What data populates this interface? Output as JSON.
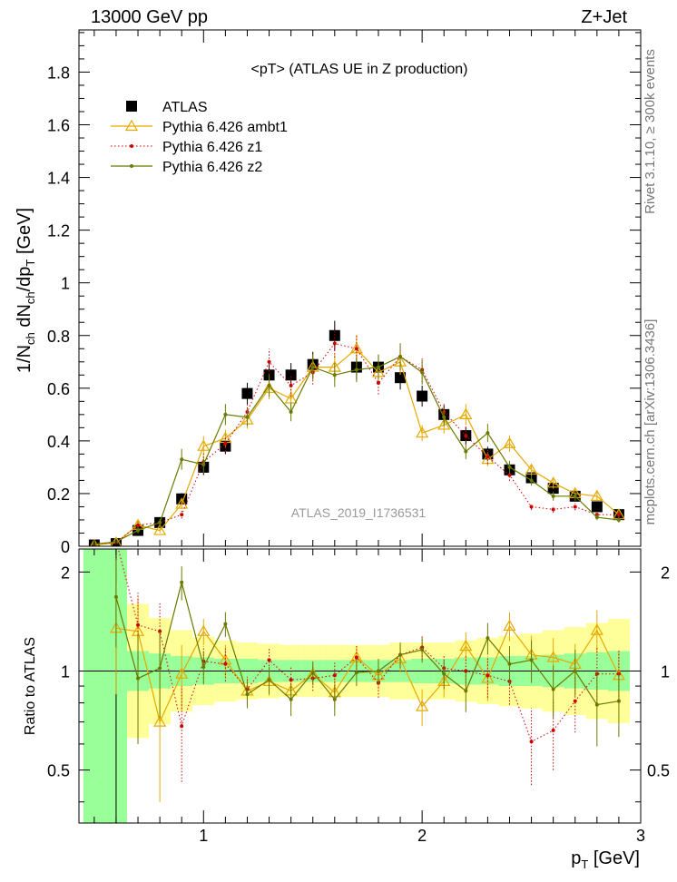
{
  "header": {
    "left": "13000 GeV pp",
    "right": "Z+Jet"
  },
  "side_texts": {
    "rivet": "Rivet 3.1.10, ≥ 300k events",
    "mcplots": "mcplots.cern.ch [arXiv:1306.3436]"
  },
  "analysis_label": "ATLAS_2019_I1736531",
  "chart_data": [
    {
      "type": "line",
      "title": "<pT>  (ATLAS UE in Z production)",
      "ylabel": "1/N_ch dN_ch/dp_T [GeV]",
      "xlabel": "p_T [GeV]",
      "xlim": [
        0.43,
        3.0
      ],
      "ylim": [
        0,
        1.96
      ],
      "yticks": [
        "0",
        "0.2",
        "0.4",
        "0.6",
        "0.8",
        "1",
        "1.2",
        "1.4",
        "1.6",
        "1.8"
      ],
      "x": [
        0.5,
        0.6,
        0.7,
        0.8,
        0.9,
        1.0,
        1.1,
        1.2,
        1.3,
        1.4,
        1.5,
        1.6,
        1.7,
        1.8,
        1.9,
        2.0,
        2.1,
        2.2,
        2.3,
        2.4,
        2.5,
        2.6,
        2.7,
        2.8,
        2.9
      ],
      "legend_position": "top-left",
      "series": [
        {
          "name": "ATLAS",
          "color": "#000000",
          "style": "markers",
          "values": [
            0.005,
            0.01,
            0.06,
            0.09,
            0.18,
            0.3,
            0.38,
            0.58,
            0.65,
            0.65,
            0.69,
            0.8,
            0.68,
            0.68,
            0.64,
            0.57,
            0.5,
            0.42,
            0.35,
            0.29,
            0.26,
            0.22,
            0.19,
            0.15,
            0.12
          ]
        },
        {
          "name": "Pythia 6.426 ambt1",
          "color": "#e6a800",
          "style": "triangles",
          "values": [
            0.004,
            0.013,
            0.08,
            0.06,
            0.16,
            0.38,
            0.41,
            0.48,
            0.6,
            0.56,
            0.68,
            0.68,
            0.75,
            0.66,
            0.7,
            0.43,
            0.46,
            0.5,
            0.33,
            0.39,
            0.29,
            0.24,
            0.2,
            0.19,
            0.12
          ]
        },
        {
          "name": "Pythia 6.426 z1",
          "color": "#cc0000",
          "style": "dotted",
          "values": [
            0.008,
            0.014,
            0.08,
            0.09,
            0.12,
            0.32,
            0.39,
            0.51,
            0.7,
            0.61,
            0.66,
            0.77,
            0.75,
            0.62,
            0.72,
            0.67,
            0.51,
            0.42,
            0.34,
            0.27,
            0.15,
            0.14,
            0.15,
            0.12,
            0.12
          ]
        },
        {
          "name": "Pythia 6.426 z2",
          "color": "#6b7a00",
          "style": "solid",
          "values": [
            0.008,
            0.017,
            0.06,
            0.09,
            0.33,
            0.31,
            0.5,
            0.49,
            0.61,
            0.51,
            0.68,
            0.65,
            0.67,
            0.68,
            0.72,
            0.66,
            0.49,
            0.36,
            0.43,
            0.3,
            0.25,
            0.19,
            0.19,
            0.11,
            0.1
          ]
        }
      ]
    },
    {
      "type": "line",
      "ylabel": "Ratio to ATLAS",
      "xlabel": "p_T [GeV]",
      "xlim": [
        0.43,
        3.0
      ],
      "ylim": [
        0.345,
        2.35
      ],
      "yscale": "log",
      "yticks": [
        "0.5",
        "1",
        "2"
      ],
      "xticks": [
        "1",
        "2",
        "3"
      ],
      "x": [
        0.5,
        0.6,
        0.7,
        0.8,
        0.9,
        1.0,
        1.1,
        1.2,
        1.3,
        1.4,
        1.5,
        1.6,
        1.7,
        1.8,
        1.9,
        2.0,
        2.1,
        2.2,
        2.3,
        2.4,
        2.5,
        2.6,
        2.7,
        2.8,
        2.9
      ],
      "band_colors": {
        "inner": "#99ff99",
        "outer": "#ffff99"
      },
      "bands": {
        "inner": [
          3.0,
          3.0,
          1.15,
          1.13,
          1.11,
          1.1,
          1.09,
          1.09,
          1.08,
          1.08,
          1.08,
          1.08,
          1.08,
          1.08,
          1.08,
          1.09,
          1.09,
          1.1,
          1.1,
          1.11,
          1.11,
          1.12,
          1.13,
          1.14,
          1.15
        ],
        "outer": [
          3.0,
          3.0,
          1.6,
          1.45,
          1.33,
          1.27,
          1.24,
          1.22,
          1.21,
          1.2,
          1.2,
          1.2,
          1.2,
          1.2,
          1.22,
          1.22,
          1.22,
          1.24,
          1.26,
          1.28,
          1.3,
          1.33,
          1.36,
          1.4,
          1.44
        ]
      },
      "series": [
        {
          "name": "Pythia 6.426 ambt1",
          "color": "#e6a800",
          "style": "triangles",
          "values": [
            null,
            1.35,
            1.32,
            0.7,
            0.98,
            1.32,
            1.08,
            0.87,
            0.93,
            0.87,
            0.98,
            0.86,
            1.1,
            0.97,
            1.09,
            0.78,
            0.93,
            1.19,
            0.95,
            1.37,
            1.12,
            1.1,
            1.05,
            1.33,
            0.97
          ]
        },
        {
          "name": "Pythia 6.426 z1",
          "color": "#cc0000",
          "style": "dotted",
          "values": [
            null,
            2.5,
            1.38,
            1.32,
            0.68,
            1.07,
            1.05,
            0.88,
            1.08,
            0.94,
            0.95,
            0.97,
            1.1,
            0.92,
            1.12,
            1.18,
            1.02,
            1.0,
            0.97,
            0.93,
            0.61,
            0.66,
            0.81,
            0.98,
            0.98
          ]
        },
        {
          "name": "Pythia 6.426 z2",
          "color": "#6b7a00",
          "style": "solid",
          "values": [
            null,
            1.68,
            0.95,
            1.02,
            1.86,
            1.03,
            1.39,
            0.85,
            0.94,
            0.82,
            0.99,
            0.82,
            0.99,
            1.0,
            1.12,
            1.16,
            0.98,
            0.87,
            1.26,
            1.05,
            1.08,
            0.88,
            1.0,
            0.79,
            0.81
          ]
        }
      ]
    }
  ]
}
